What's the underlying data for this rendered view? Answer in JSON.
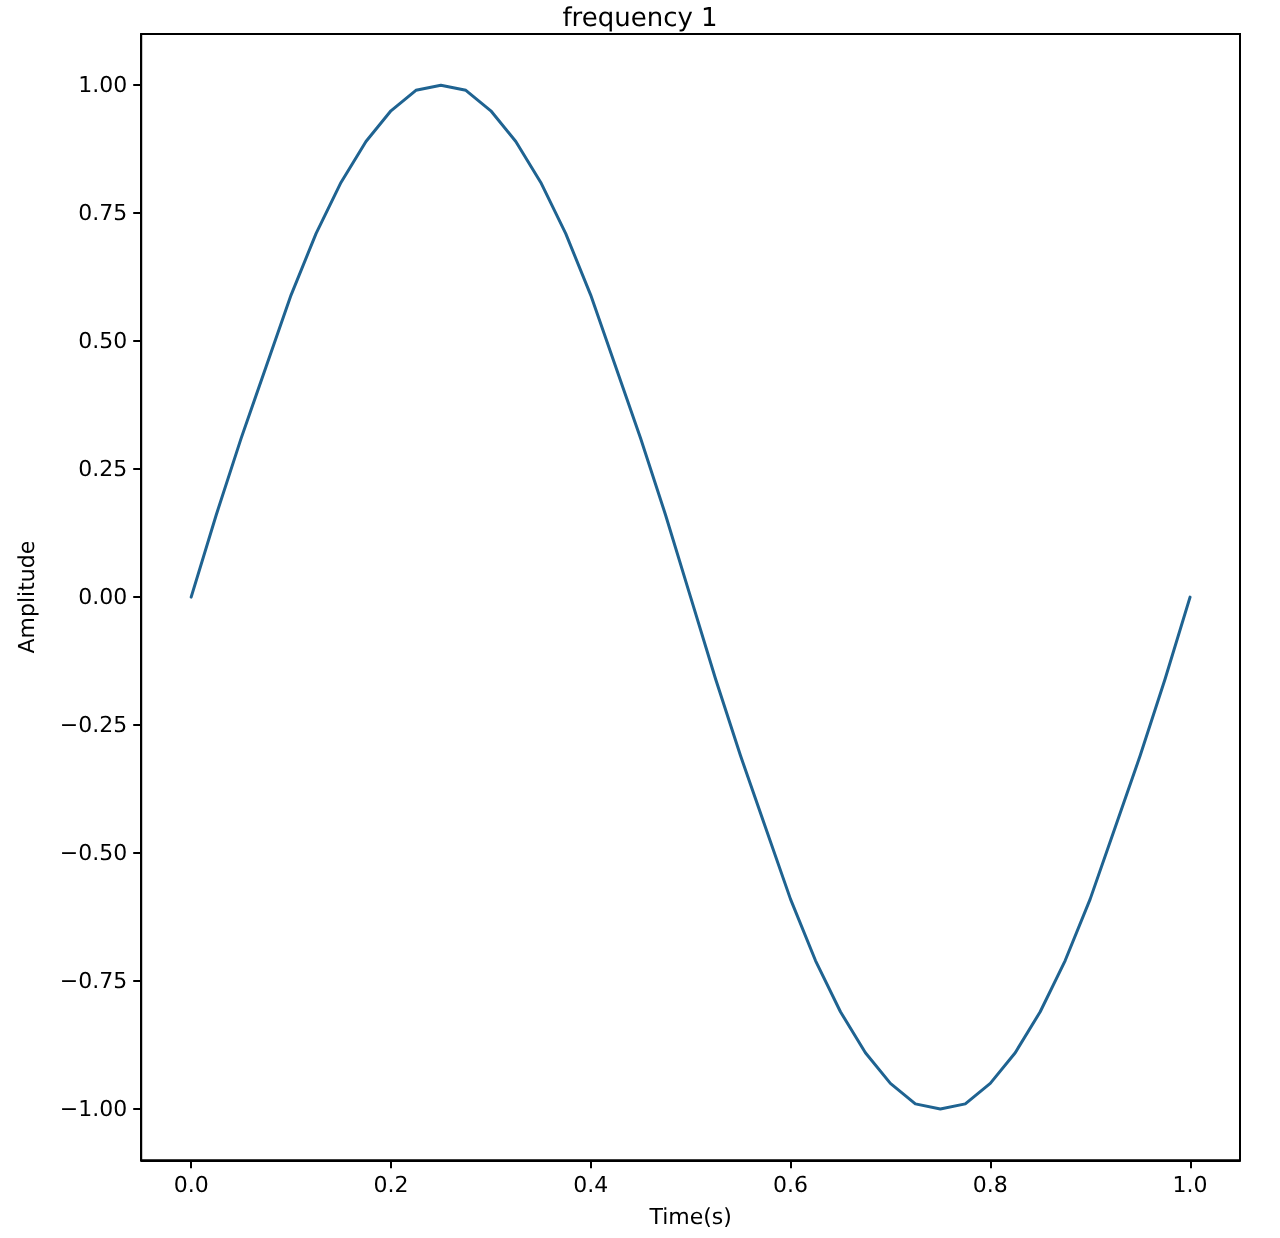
{
  "chart_data": {
    "type": "line",
    "title": "frequency 1",
    "xlabel": "Time(s)",
    "ylabel": "Amplitude",
    "x": [
      0,
      0.025,
      0.05,
      0.075,
      0.1,
      0.125,
      0.15,
      0.175,
      0.2,
      0.225,
      0.25,
      0.275,
      0.3,
      0.325,
      0.35,
      0.375,
      0.4,
      0.425,
      0.45,
      0.475,
      0.5,
      0.525,
      0.55,
      0.575,
      0.6,
      0.625,
      0.65,
      0.675,
      0.7,
      0.725,
      0.75,
      0.775,
      0.8,
      0.825,
      0.85,
      0.875,
      0.9,
      0.925,
      0.95,
      0.975,
      1
    ],
    "series": [
      {
        "color": "#1f6391",
        "values": [
          0,
          0.16,
          0.31,
          0.45,
          0.59,
          0.71,
          0.81,
          0.89,
          0.95,
          0.99,
          1,
          0.99,
          0.95,
          0.89,
          0.81,
          0.71,
          0.59,
          0.45,
          0.31,
          0.16,
          0,
          -0.16,
          -0.31,
          -0.45,
          -0.59,
          -0.71,
          -0.81,
          -0.89,
          -0.95,
          -0.99,
          -1,
          -0.99,
          -0.95,
          -0.89,
          -0.81,
          -0.71,
          -0.59,
          -0.45,
          -0.31,
          -0.16,
          0
        ]
      }
    ],
    "xlim": [
      -0.05,
      1.05
    ],
    "xticks": [
      {
        "value": 0,
        "label": "0.0"
      },
      {
        "value": 0.2,
        "label": "0.2"
      },
      {
        "value": 0.4,
        "label": "0.4"
      },
      {
        "value": 0.6,
        "label": "0.6"
      },
      {
        "value": 0.8,
        "label": "0.8"
      },
      {
        "value": 1,
        "label": "1.0"
      }
    ],
    "ylim": [
      -1.1,
      1.1
    ],
    "yticks": [
      {
        "value": -1,
        "label": "−1.00"
      },
      {
        "value": -0.75,
        "label": "−0.75"
      },
      {
        "value": -0.5,
        "label": "−0.50"
      },
      {
        "value": -0.25,
        "label": "−0.25"
      },
      {
        "value": 0,
        "label": "0.00"
      },
      {
        "value": 0.25,
        "label": "0.25"
      },
      {
        "value": 0.5,
        "label": "0.50"
      },
      {
        "value": 0.75,
        "label": "0.75"
      },
      {
        "value": 1,
        "label": "1.00"
      }
    ],
    "marker": "none",
    "line_style": "solid"
  }
}
